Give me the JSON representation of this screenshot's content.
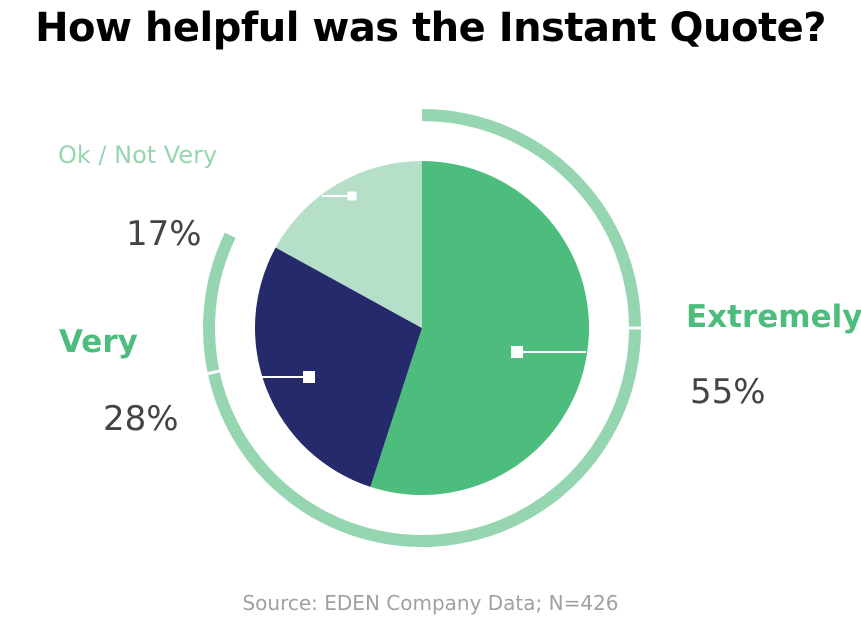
{
  "title": "How helpful was the Instant Quote?",
  "source": "Source: EDEN Company Data; N=426",
  "colors": {
    "extremely": "#4dbd7e",
    "very": "#252a6a",
    "ok": "#b5dfc8",
    "outer_ring": "#95d6b0",
    "pct_text": "#444444",
    "source_text": "#a0a0a0"
  },
  "chart_data": {
    "type": "pie",
    "title": "How helpful was the Instant Quote?",
    "categories": [
      "Extremely",
      "Very",
      "Ok / Not Very"
    ],
    "values": [
      55,
      28,
      17
    ],
    "value_labels": [
      "55%",
      "28%",
      "17%"
    ],
    "unit": "%",
    "legend": "none"
  }
}
